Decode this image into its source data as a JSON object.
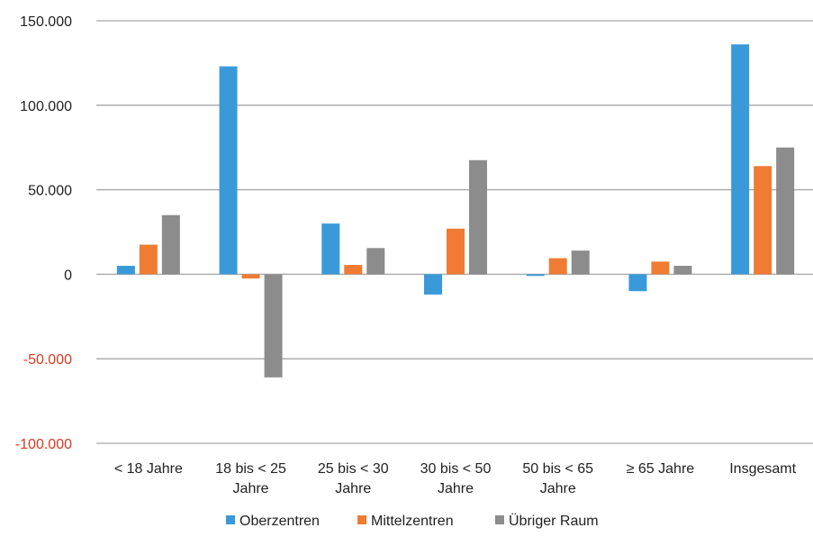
{
  "chart_data": {
    "type": "bar",
    "title": "",
    "xlabel": "",
    "ylabel": "",
    "ylim": [
      -100000,
      150000
    ],
    "yticks": [
      150000,
      100000,
      50000,
      0,
      -50000,
      -100000
    ],
    "ytick_labels": [
      "150.000",
      "100.000",
      "50.000",
      "0",
      "-50.000",
      "-100.000"
    ],
    "categories": [
      [
        "< 18 Jahre"
      ],
      [
        "18 bis < 25",
        "Jahre"
      ],
      [
        "25 bis < 30",
        "Jahre"
      ],
      [
        "30 bis < 50",
        "Jahre"
      ],
      [
        "50 bis < 65",
        "Jahre"
      ],
      [
        "≥ 65 Jahre"
      ],
      [
        "Insgesamt"
      ]
    ],
    "series": [
      {
        "name": "Oberzentren",
        "color": "#3a9ad9",
        "values": [
          5000,
          123000,
          30000,
          -12000,
          -1000,
          -10000,
          136000
        ]
      },
      {
        "name": "Mittelzentren",
        "color": "#f07b32",
        "values": [
          17500,
          -2500,
          5500,
          27000,
          9500,
          7500,
          64000
        ]
      },
      {
        "name": "Übriger Raum",
        "color": "#8c8c8c",
        "values": [
          35000,
          -61000,
          15500,
          67500,
          14000,
          5000,
          75000
        ]
      }
    ],
    "grid": true,
    "legend": "bottom"
  }
}
